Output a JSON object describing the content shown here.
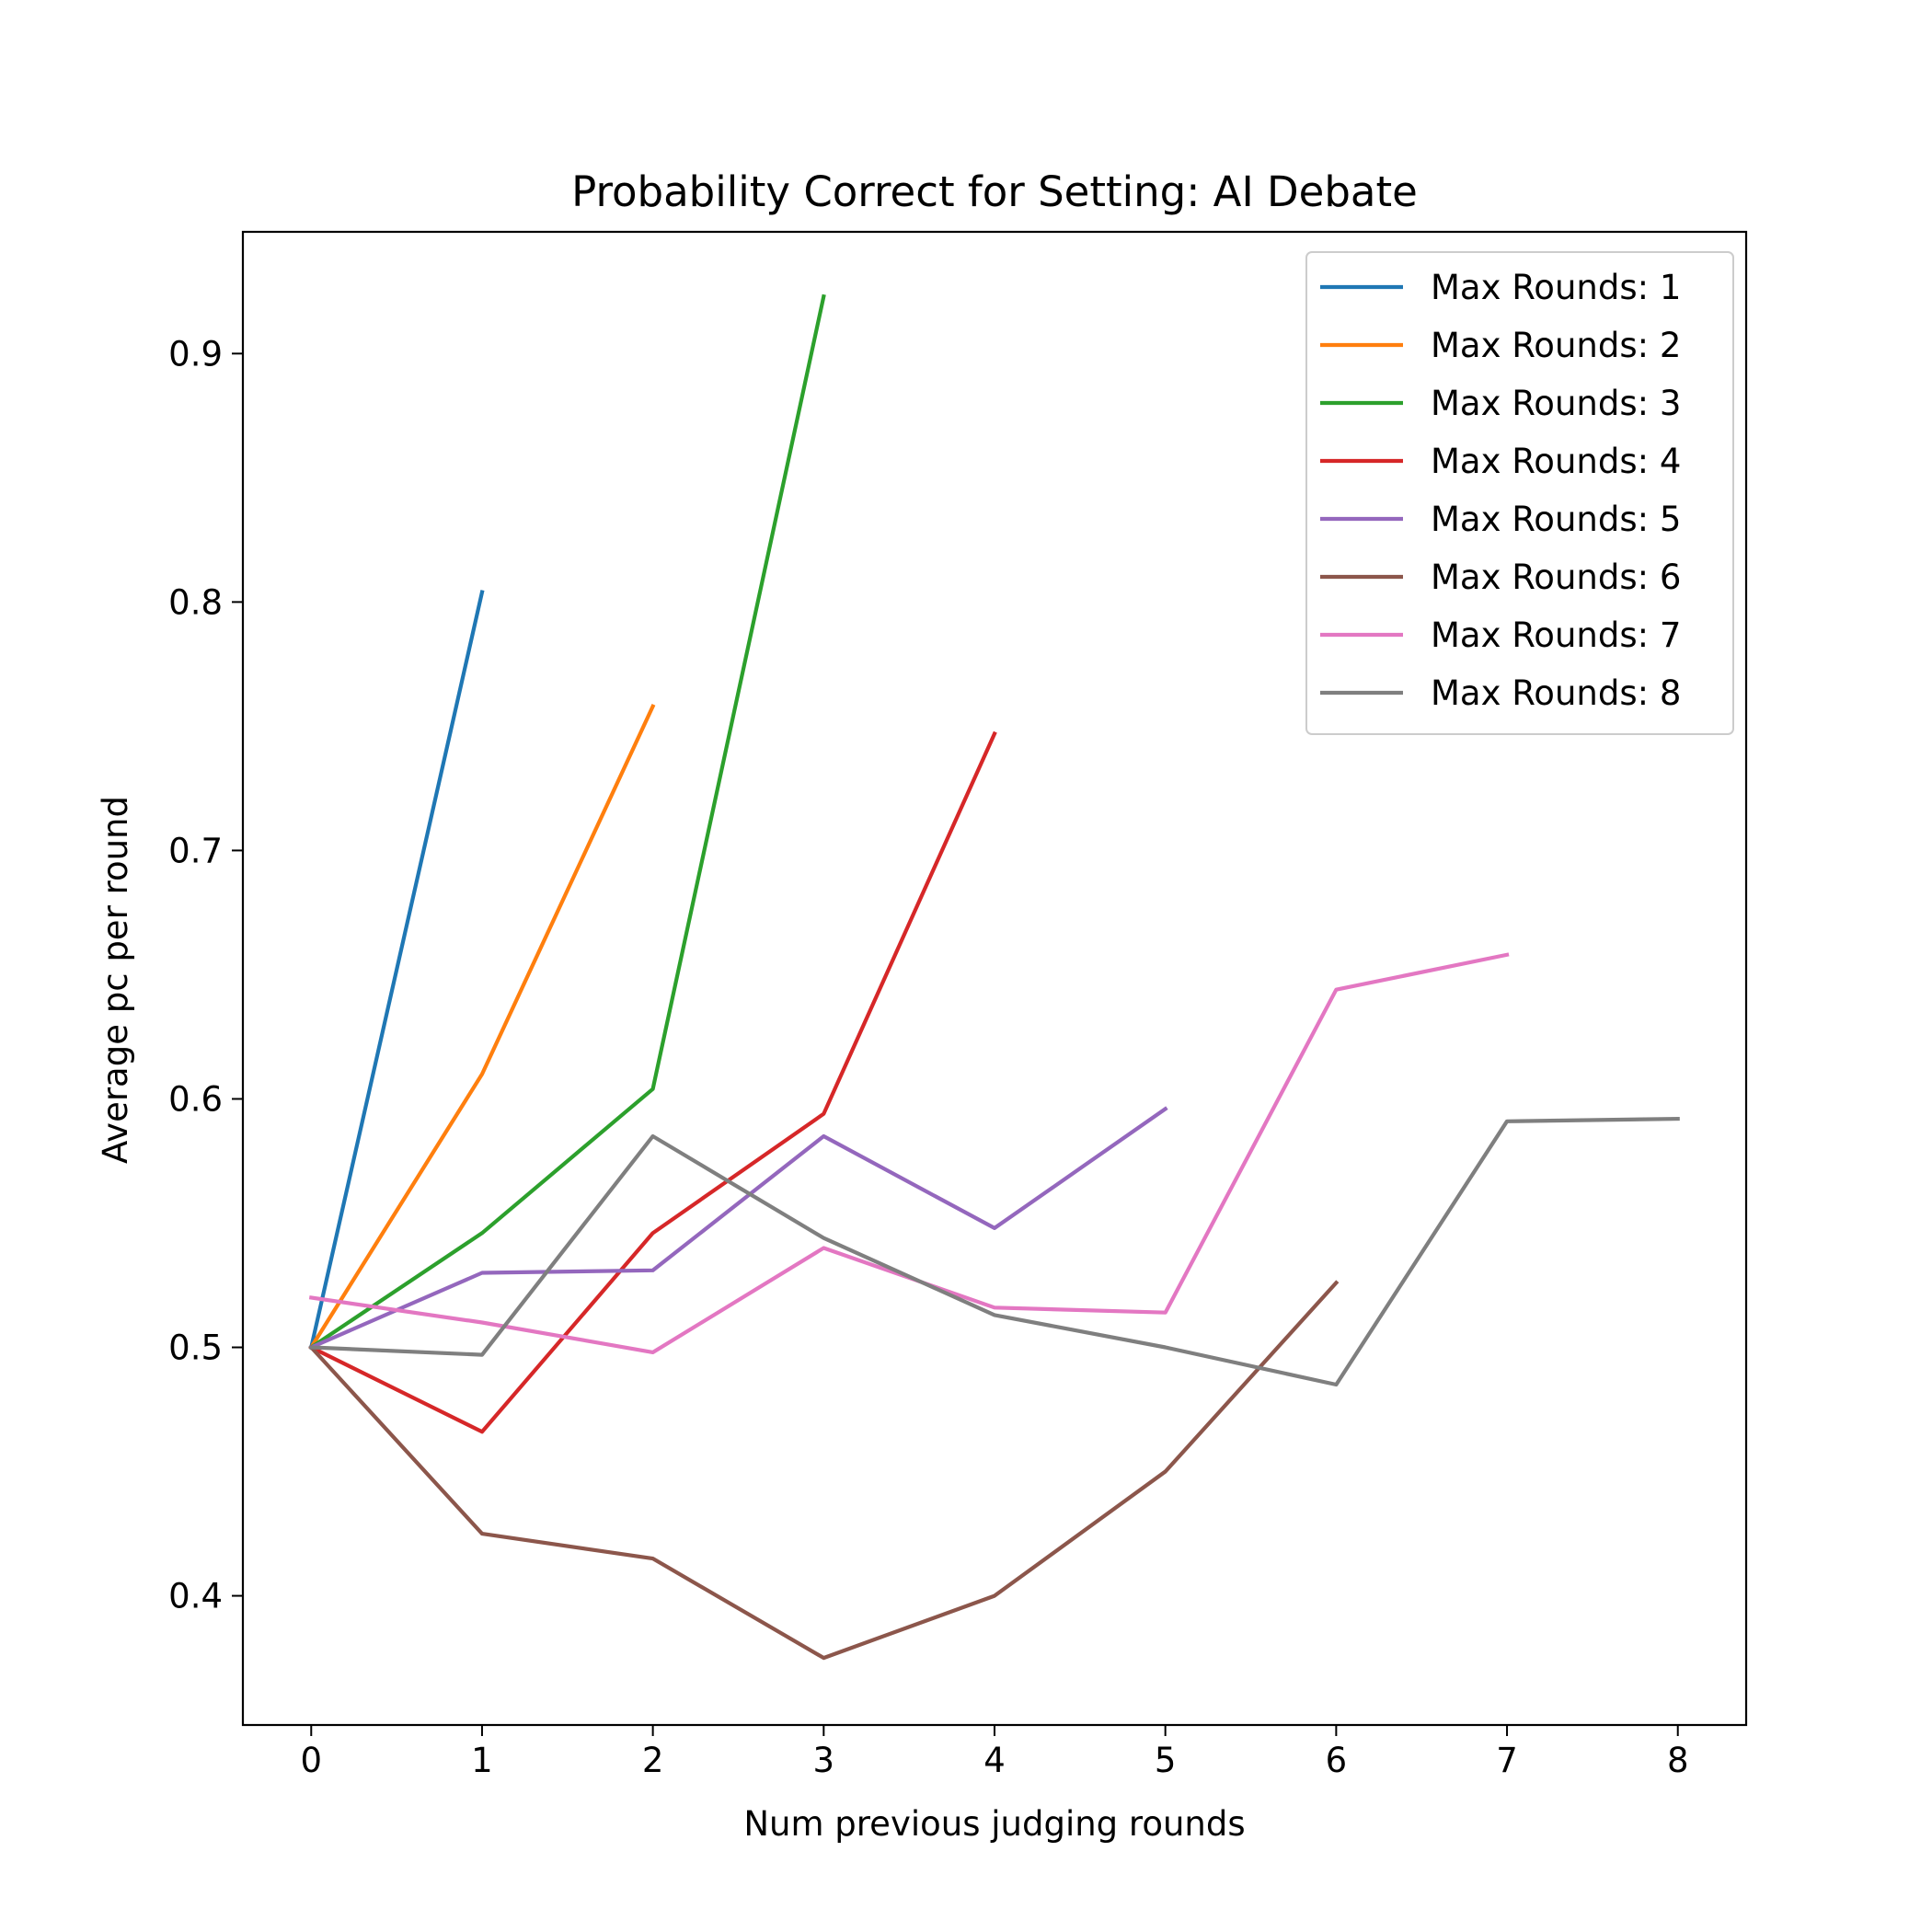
{
  "chart_data": {
    "type": "line",
    "title": "Probability Correct for Setting: AI Debate",
    "xlabel": "Num previous judging rounds",
    "ylabel": "Average pc per round",
    "xlim": [
      -0.4,
      8.4
    ],
    "ylim": [
      0.348,
      0.949
    ],
    "xticks": [
      "0",
      "1",
      "2",
      "3",
      "4",
      "5",
      "6",
      "7",
      "8"
    ],
    "yticks": [
      "0.4",
      "0.5",
      "0.6",
      "0.7",
      "0.8",
      "0.9"
    ],
    "grid": false,
    "legend_position": "top-right",
    "series": [
      {
        "name": "Max Rounds: 1",
        "color": "#1f77b4",
        "x": [
          0,
          1
        ],
        "y": [
          0.5,
          0.804
        ]
      },
      {
        "name": "Max Rounds: 2",
        "color": "#ff7f0e",
        "x": [
          0,
          1,
          2
        ],
        "y": [
          0.5,
          0.61,
          0.758
        ]
      },
      {
        "name": "Max Rounds: 3",
        "color": "#2ca02c",
        "x": [
          0,
          1,
          2,
          3
        ],
        "y": [
          0.5,
          0.546,
          0.604,
          0.923
        ]
      },
      {
        "name": "Max Rounds: 4",
        "color": "#d62728",
        "x": [
          0,
          1,
          2,
          3,
          4
        ],
        "y": [
          0.5,
          0.466,
          0.546,
          0.594,
          0.747
        ]
      },
      {
        "name": "Max Rounds: 5",
        "color": "#9467bd",
        "x": [
          0,
          1,
          2,
          3,
          4,
          5
        ],
        "y": [
          0.5,
          0.53,
          0.531,
          0.585,
          0.548,
          0.596
        ]
      },
      {
        "name": "Max Rounds: 6",
        "color": "#8c564b",
        "x": [
          0,
          1,
          2,
          3,
          4,
          5,
          6
        ],
        "y": [
          0.5,
          0.425,
          0.415,
          0.375,
          0.4,
          0.45,
          0.526
        ]
      },
      {
        "name": "Max Rounds: 7",
        "color": "#e377c2",
        "x": [
          0,
          1,
          2,
          3,
          4,
          5,
          6,
          7
        ],
        "y": [
          0.52,
          0.51,
          0.498,
          0.54,
          0.516,
          0.514,
          0.644,
          0.658
        ]
      },
      {
        "name": "Max Rounds: 8",
        "color": "#7f7f7f",
        "x": [
          0,
          1,
          2,
          3,
          4,
          5,
          6,
          7,
          8
        ],
        "y": [
          0.5,
          0.497,
          0.585,
          0.544,
          0.513,
          0.5,
          0.485,
          0.591,
          0.592
        ]
      }
    ]
  }
}
